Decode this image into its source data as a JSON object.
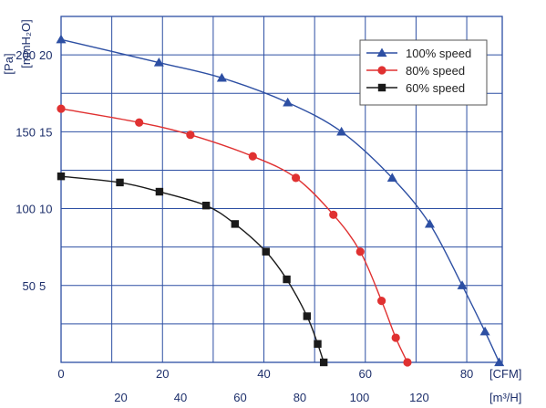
{
  "chart_data": {
    "type": "line",
    "y_unit_outer": "[Pa]",
    "y_unit_inner": "[mmH₂O]",
    "x_unit_top": "[CFM]",
    "x_unit_bottom": "[m³/H]",
    "y_ticks_pa": [
      "200",
      "150",
      "100",
      "50"
    ],
    "y_ticks_mm": [
      "20",
      "15",
      "10",
      "5"
    ],
    "y_tick_values_mm": [
      20,
      15,
      10,
      5
    ],
    "x_ticks_cfm": [
      "0",
      "20",
      "40",
      "60",
      "80"
    ],
    "x_tick_values_cfm": [
      0,
      20,
      40,
      60,
      80
    ],
    "x_ticks_m3h": [
      "20",
      "40",
      "60",
      "80",
      "100",
      "120"
    ],
    "x_tick_values_m3h": [
      20,
      40,
      60,
      80,
      100,
      120
    ],
    "xlim_cfm": [
      0,
      87
    ],
    "ylim_mm": [
      0,
      22.5
    ],
    "legend_position": "top-right",
    "series": [
      {
        "name": "100% speed",
        "color": "#2d4fa3",
        "marker": "triangle",
        "x": [
          0,
          19.3,
          31.7,
          44.7,
          55.3,
          65.3,
          72.7,
          79.1,
          83.6,
          86.4
        ],
        "y": [
          21.0,
          19.5,
          18.5,
          16.9,
          15.0,
          12.0,
          9.0,
          5.0,
          2.0,
          0.0
        ]
      },
      {
        "name": "80%  speed",
        "color": "#e03131",
        "marker": "circle",
        "x": [
          0,
          15.4,
          25.5,
          37.8,
          46.3,
          53.7,
          59.0,
          63.2,
          66.0,
          68.3
        ],
        "y": [
          16.5,
          15.6,
          14.8,
          13.4,
          12.0,
          9.6,
          7.2,
          4.0,
          1.6,
          0.0
        ]
      },
      {
        "name": "60%  speed",
        "color": "#1a1a1a",
        "marker": "square",
        "x": [
          0,
          11.6,
          19.4,
          28.6,
          34.3,
          40.4,
          44.5,
          48.5,
          50.6,
          51.8
        ],
        "y": [
          12.1,
          11.7,
          11.1,
          10.2,
          9.0,
          7.2,
          5.4,
          3.0,
          1.2,
          0.0
        ]
      }
    ]
  }
}
